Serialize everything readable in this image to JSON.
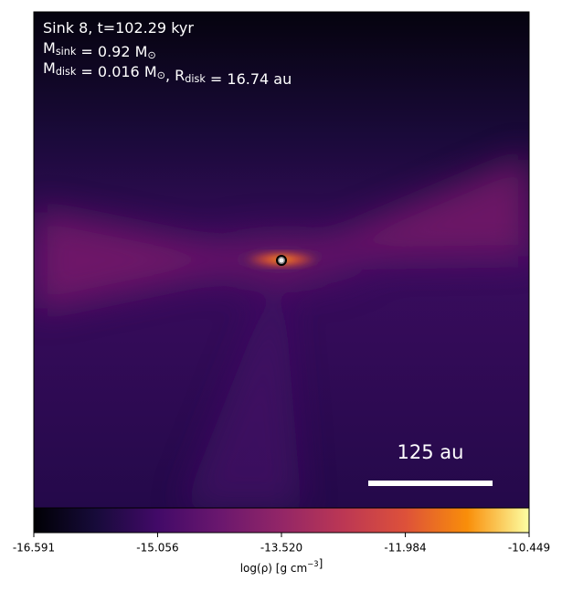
{
  "chart_data": {
    "type": "image",
    "annotations": [
      [
        {
          "text": "Sink 8, t=102.29 kyr"
        }
      ],
      [
        {
          "text": "M"
        },
        {
          "sub": "sink"
        },
        {
          "text": " = 0.92 M"
        },
        {
          "sub": "⊙"
        }
      ],
      [
        {
          "text": "M"
        },
        {
          "sub": "disk"
        },
        {
          "text": " = 0.016 M"
        },
        {
          "sub": "⊙"
        },
        {
          "text": ", R"
        },
        {
          "sub": "disk"
        },
        {
          "text": " = 16.74 au"
        }
      ]
    ],
    "scale_bar": "125 au",
    "colormap": "inferno",
    "colorbar_label": [
      {
        "text": "log(ρ) [g cm"
      },
      {
        "sup": "−3"
      },
      {
        "text": "]"
      }
    ],
    "clim": [
      -16.591,
      -10.449
    ],
    "cticks": [
      -16.591,
      -15.056,
      {
        "value": -13.52,
        "label": "-13.520"
      },
      -11.984,
      -10.449
    ]
  }
}
